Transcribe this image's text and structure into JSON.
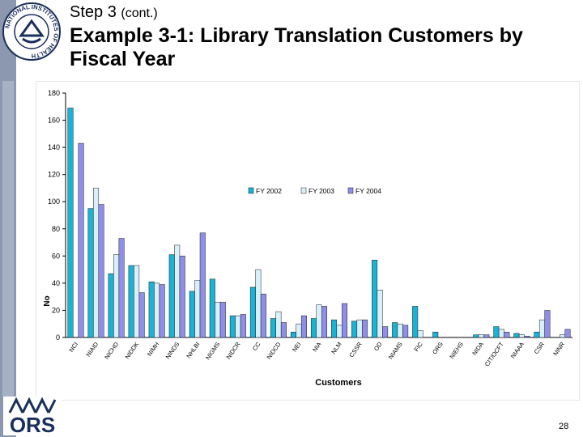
{
  "header": {
    "step_label": "Step 3",
    "step_suffix": "(cont.)",
    "title": "Example 3-1: Library Translation Customers by Fiscal Year"
  },
  "logos": {
    "nih_text": "NATIONAL INSTITUTES OF HEALTH",
    "ors_text": "ORS"
  },
  "page_number": "28",
  "colors": {
    "fy2002": "#19b3d6",
    "fy2003": "#d8f0f8",
    "fy2004": "#8f8fea",
    "sidebar": "#8c98b0"
  },
  "chart_data": {
    "type": "bar",
    "xlabel": "Customers",
    "ylabel": "No",
    "ylim": [
      0,
      180
    ],
    "yticks": [
      0,
      20,
      40,
      60,
      80,
      100,
      120,
      140,
      160,
      180
    ],
    "grid": false,
    "legend_position": "center",
    "categories": [
      "NCI",
      "NIAID",
      "NICHD",
      "NIDDK",
      "NIMH",
      "NINDS",
      "NHLBI",
      "NIGMS",
      "NIDCR",
      "CC",
      "NIDCD",
      "NEI",
      "NIA",
      "NLM",
      "CSSR",
      "OD",
      "NIAMS",
      "FIC",
      "ORS",
      "NIEHS",
      "NIDA",
      "CIT/OCFT",
      "NIAAA",
      "CSR",
      "NINR"
    ],
    "series": [
      {
        "name": "FY 2002",
        "values": [
          169,
          95,
          47,
          53,
          41,
          61,
          34,
          43,
          16,
          37,
          14,
          4,
          14,
          13,
          12,
          57,
          11,
          23,
          4,
          0,
          2,
          8,
          3,
          4,
          0
        ]
      },
      {
        "name": "FY 2003",
        "values": [
          0,
          110,
          61,
          53,
          40,
          68,
          42,
          26,
          16,
          50,
          19,
          10,
          24,
          9,
          13,
          35,
          10,
          5,
          0,
          0,
          2,
          6,
          2,
          13,
          2
        ]
      },
      {
        "name": "FY 2004",
        "values": [
          143,
          98,
          73,
          33,
          39,
          60,
          77,
          26,
          17,
          32,
          11,
          16,
          23,
          25,
          13,
          8,
          9,
          0,
          0,
          0,
          2,
          4,
          1,
          20,
          6
        ]
      }
    ]
  }
}
